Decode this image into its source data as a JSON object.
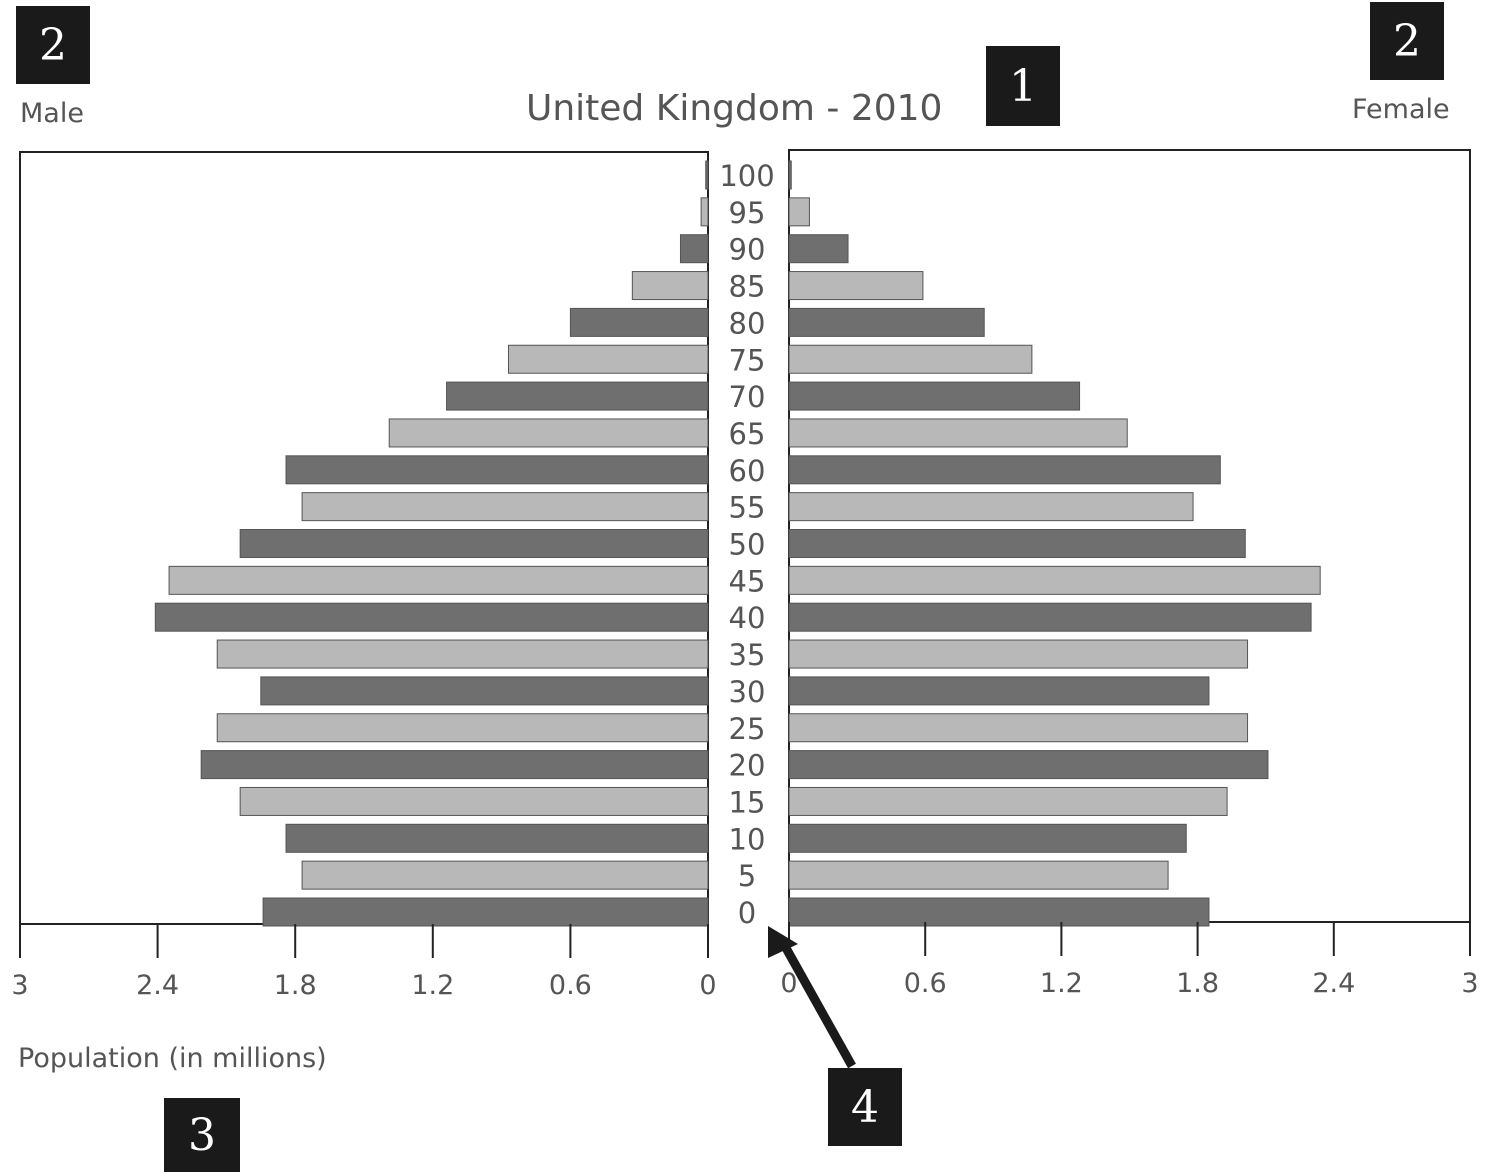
{
  "markers": {
    "title_marker": "1",
    "male_marker": "2",
    "female_marker": "2",
    "axis_marker": "3",
    "age_marker": "4"
  },
  "labels": {
    "male": "Male",
    "female": "Female",
    "xlabel": "Population (in millions)"
  },
  "colors": {
    "dark_bar": "#6f6f6f",
    "light_bar": "#b8b8b8",
    "text": "#555555",
    "marker_bg": "#1a1a1a"
  },
  "chart_data": {
    "type": "bar",
    "title": "United Kingdom - 2010",
    "orientation": "horizontal-pyramid",
    "categories": [
      "100",
      "95",
      "90",
      "85",
      "80",
      "75",
      "70",
      "65",
      "60",
      "55",
      "50",
      "45",
      "40",
      "35",
      "30",
      "25",
      "20",
      "15",
      "10",
      "5",
      "0"
    ],
    "series": [
      {
        "name": "Male",
        "values": [
          0.01,
          0.03,
          0.12,
          0.33,
          0.6,
          0.87,
          1.14,
          1.39,
          1.84,
          1.77,
          2.04,
          2.35,
          2.41,
          2.14,
          1.95,
          2.14,
          2.21,
          2.04,
          1.84,
          1.77,
          1.94
        ]
      },
      {
        "name": "Female",
        "values": [
          0.01,
          0.09,
          0.26,
          0.59,
          0.86,
          1.07,
          1.28,
          1.49,
          1.9,
          1.78,
          2.01,
          2.34,
          2.3,
          2.02,
          1.85,
          2.02,
          2.11,
          1.93,
          1.75,
          1.67,
          1.85
        ]
      }
    ],
    "xticks": [
      "3",
      "2.4",
      "1.8",
      "1.2",
      "0.6",
      "0"
    ],
    "xlim": [
      0,
      3
    ],
    "xlabel": "Population (in millions)",
    "ylabel": "",
    "grid": false,
    "legend": "none"
  }
}
